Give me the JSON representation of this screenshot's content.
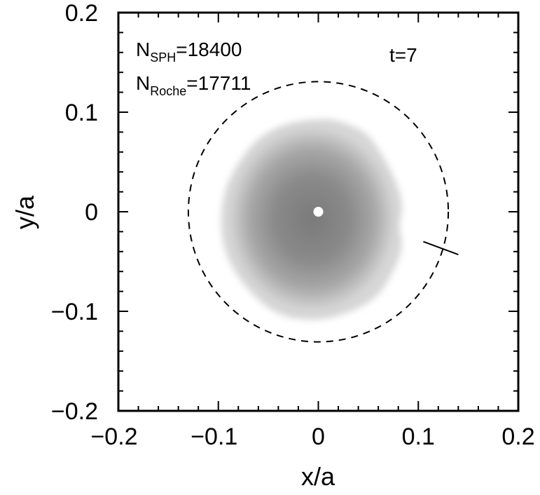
{
  "chart_data": {
    "type": "scatter",
    "title": "",
    "xlabel": "x/a",
    "ylabel": "y/a",
    "xlim": [
      -0.2,
      0.2
    ],
    "ylim": [
      -0.2,
      0.2
    ],
    "xticks": [
      -0.2,
      -0.1,
      0,
      0.1,
      0.2
    ],
    "xtick_labels": [
      "−0.2",
      "−0.1",
      "0",
      "0.1",
      "0.2"
    ],
    "yticks": [
      -0.2,
      -0.1,
      0,
      0.1,
      0.2
    ],
    "ytick_labels": [
      "−0.2",
      "−0.1",
      "0",
      "0.1",
      "0.2"
    ],
    "grid": false,
    "annotations": {
      "n_sph": {
        "base": "N",
        "sub": "SPH",
        "value": "=18400"
      },
      "n_roche": {
        "base": "N",
        "sub": "Roche",
        "value": "=17711"
      },
      "time": "t=7"
    },
    "roche_circle": {
      "center": [
        0.0,
        0.0
      ],
      "radius": 0.13,
      "style": "dashed"
    },
    "disk": {
      "description_values": {
        "center": [
          0.0,
          0.0
        ],
        "outer_radius_approx": 0.1
      },
      "outline": [
        [
          0.01,
          0.094
        ],
        [
          0.03,
          0.088
        ],
        [
          0.05,
          0.078
        ],
        [
          0.065,
          0.055
        ],
        [
          0.078,
          0.03
        ],
        [
          0.085,
          0.005
        ],
        [
          0.08,
          -0.015
        ],
        [
          0.085,
          -0.035
        ],
        [
          0.075,
          -0.06
        ],
        [
          0.06,
          -0.085
        ],
        [
          0.035,
          -0.1
        ],
        [
          0.0,
          -0.11
        ],
        [
          -0.04,
          -0.105
        ],
        [
          -0.07,
          -0.08
        ],
        [
          -0.09,
          -0.05
        ],
        [
          -0.098,
          -0.02
        ],
        [
          -0.095,
          0.02
        ],
        [
          -0.08,
          0.05
        ],
        [
          -0.06,
          0.075
        ],
        [
          -0.03,
          0.09
        ]
      ],
      "color_outer": "#d2d2d2",
      "color_inner": "#808080"
    },
    "central_star": {
      "position": [
        0.0,
        0.0
      ],
      "color": "#ffffff"
    },
    "l1_marker": {
      "from": [
        0.105,
        -0.03
      ],
      "to": [
        0.14,
        -0.043
      ]
    }
  }
}
